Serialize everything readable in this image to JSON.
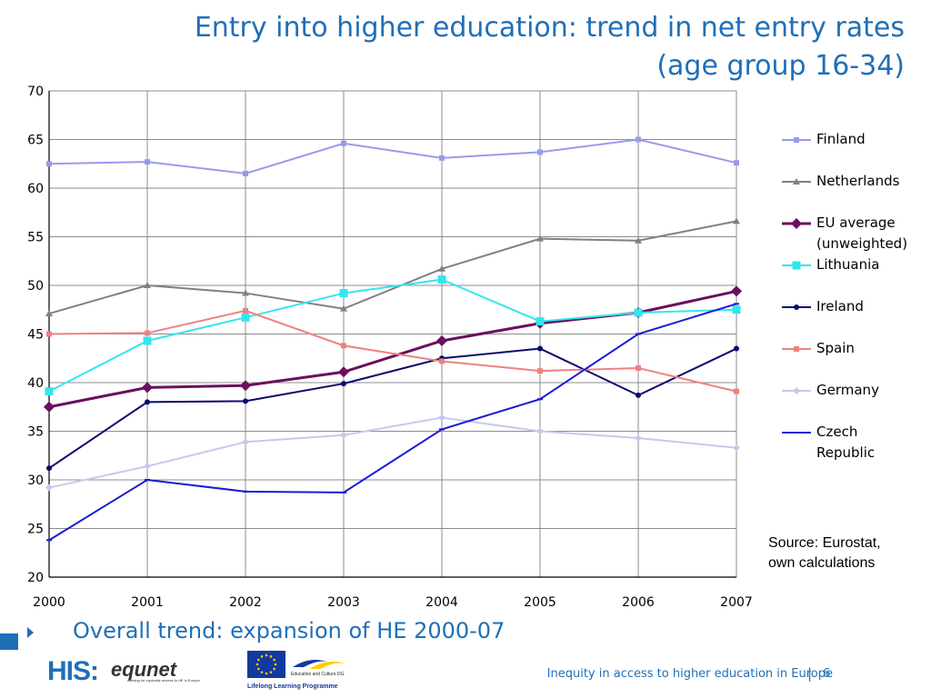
{
  "slide": {
    "title_line1": "Entry into higher education: trend in net entry rates",
    "title_line2": "(age group 16-34)",
    "bullet": "Overall trend: expansion of HE 2000-07",
    "source": "Source: Eurostat,\nown calculations",
    "footer_text": "Inequity in access to higher education in Europe",
    "footer_sep": "|",
    "page_number": "6",
    "logos": {
      "his": "HIS:",
      "equnet": "equnet",
      "equnet_tagline": "working for equitable access to HE in Europe",
      "education_culture": "Education and Culture DG",
      "llp": "Lifelong Learning Programme"
    }
  },
  "chart_data": {
    "type": "line",
    "title": "Entry into higher education: trend in net entry rates (age group 16-34)",
    "xlabel": "",
    "ylabel": "",
    "x": [
      "2000",
      "2001",
      "2002",
      "2003",
      "2004",
      "2005",
      "2006",
      "2007"
    ],
    "ylim": [
      20,
      70
    ],
    "yticks": [
      20,
      25,
      30,
      35,
      40,
      45,
      50,
      55,
      60,
      65,
      70
    ],
    "grid": true,
    "legend_position": "right",
    "series": [
      {
        "name": "Finland",
        "color": "#9999ee",
        "marker": "square",
        "values": [
          62.5,
          62.7,
          61.5,
          64.6,
          63.1,
          63.7,
          65.0,
          62.6
        ]
      },
      {
        "name": "Netherlands",
        "color": "#808080",
        "marker": "triangle",
        "values": [
          47.1,
          50.0,
          49.2,
          47.6,
          51.7,
          54.8,
          54.6,
          56.6
        ]
      },
      {
        "name": "EU average\n(unweighted)",
        "color": "#6b0f5c",
        "marker": "diamond",
        "values": [
          37.5,
          39.5,
          39.7,
          41.1,
          44.3,
          46.1,
          47.2,
          49.4
        ]
      },
      {
        "name": "Lithuania",
        "color": "#33e6ee",
        "marker": "square",
        "values": [
          39.1,
          44.3,
          46.7,
          49.2,
          50.6,
          46.3,
          47.2,
          47.5
        ]
      },
      {
        "name": "Ireland",
        "color": "#0a0a6e",
        "marker": "circle",
        "values": [
          31.2,
          38.0,
          38.1,
          39.9,
          42.5,
          43.5,
          38.7,
          43.5
        ]
      },
      {
        "name": "Spain",
        "color": "#f08080",
        "marker": "square",
        "values": [
          45.0,
          45.1,
          47.4,
          43.8,
          42.2,
          41.2,
          41.5,
          39.1
        ]
      },
      {
        "name": "Germany",
        "color": "#c8c8ee",
        "marker": "diamond",
        "values": [
          29.2,
          31.4,
          33.9,
          34.6,
          36.4,
          35.0,
          34.3,
          33.3
        ]
      },
      {
        "name": "Czech\nRepublic",
        "color": "#1a1ad6",
        "marker": "dash",
        "values": [
          23.8,
          30.0,
          28.8,
          28.7,
          35.2,
          38.3,
          45.0,
          48.1
        ]
      }
    ]
  }
}
